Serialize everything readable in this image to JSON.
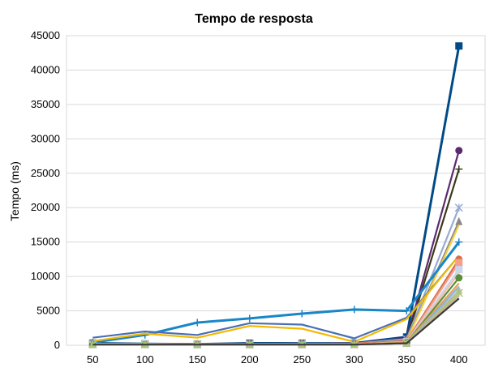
{
  "chart_data": {
    "type": "line",
    "title": "Tempo de resposta",
    "xlabel": "",
    "ylabel": "Tempo (ms)",
    "x": [
      50,
      100,
      150,
      200,
      250,
      300,
      350,
      400
    ],
    "ylim": [
      0,
      45000
    ],
    "yticks": [
      0,
      5000,
      10000,
      15000,
      20000,
      25000,
      30000,
      35000,
      40000,
      45000
    ],
    "grid": "horizontal",
    "legend": "none",
    "series": [
      {
        "values": [
          300,
          200,
          150,
          300,
          300,
          300,
          1200,
          43500
        ],
        "color": "#004b87",
        "marker": "square"
      },
      {
        "values": [
          200,
          150,
          150,
          150,
          200,
          300,
          1000,
          28300
        ],
        "color": "#5b2a6e",
        "marker": "circle"
      },
      {
        "values": [
          150,
          150,
          100,
          100,
          150,
          200,
          800,
          25600
        ],
        "color": "#3a3a1a",
        "marker": "plus"
      },
      {
        "values": [
          200,
          200,
          150,
          200,
          250,
          250,
          900,
          20000
        ],
        "color": "#9aaad4",
        "marker": "star"
      },
      {
        "values": [
          150,
          150,
          150,
          150,
          150,
          200,
          700,
          18000
        ],
        "color": "#888888",
        "marker": "triangle"
      },
      {
        "values": [
          150,
          100,
          100,
          100,
          100,
          150,
          600,
          17500
        ],
        "color": "#f5d142",
        "marker": "none"
      },
      {
        "values": [
          400,
          1500,
          3300,
          3900,
          4600,
          5200,
          5000,
          15000
        ],
        "color": "#1a86c8",
        "marker": "plus"
      },
      {
        "values": [
          1100,
          2000,
          1500,
          3200,
          3000,
          1000,
          4000,
          13000
        ],
        "color": "#4a6fb3",
        "marker": "none"
      },
      {
        "values": [
          600,
          1700,
          1100,
          2800,
          2400,
          500,
          3800,
          13000
        ],
        "color": "#f2b900",
        "marker": "none"
      },
      {
        "values": [
          200,
          200,
          200,
          200,
          200,
          250,
          600,
          12500
        ],
        "color": "#d4704a",
        "marker": "circle"
      },
      {
        "values": [
          150,
          150,
          100,
          100,
          100,
          150,
          500,
          12000
        ],
        "color": "#f4a08a",
        "marker": "square"
      },
      {
        "values": [
          150,
          150,
          100,
          100,
          100,
          150,
          500,
          11000
        ],
        "color": "#c9d6ec",
        "marker": "square"
      },
      {
        "values": [
          100,
          100,
          100,
          100,
          100,
          150,
          400,
          10500
        ],
        "color": "#f0c0b0",
        "marker": "none"
      },
      {
        "values": [
          100,
          100,
          100,
          100,
          100,
          150,
          400,
          9800
        ],
        "color": "#5a8f3a",
        "marker": "circle"
      },
      {
        "values": [
          100,
          100,
          100,
          100,
          100,
          150,
          400,
          9000
        ],
        "color": "#e8a050",
        "marker": "none"
      },
      {
        "values": [
          100,
          100,
          100,
          100,
          100,
          100,
          300,
          8500
        ],
        "color": "#7fb3e0",
        "marker": "none"
      },
      {
        "values": [
          100,
          100,
          100,
          100,
          100,
          100,
          300,
          8000
        ],
        "color": "#b8b8b8",
        "marker": "triangle"
      },
      {
        "values": [
          100,
          100,
          100,
          100,
          100,
          100,
          300,
          7600
        ],
        "color": "#a8c870",
        "marker": "star"
      },
      {
        "values": [
          100,
          100,
          100,
          100,
          100,
          100,
          300,
          7200
        ],
        "color": "#c8b090",
        "marker": "none"
      },
      {
        "values": [
          100,
          100,
          100,
          100,
          100,
          100,
          300,
          6800
        ],
        "color": "#3a3a3a",
        "marker": "none"
      }
    ]
  }
}
